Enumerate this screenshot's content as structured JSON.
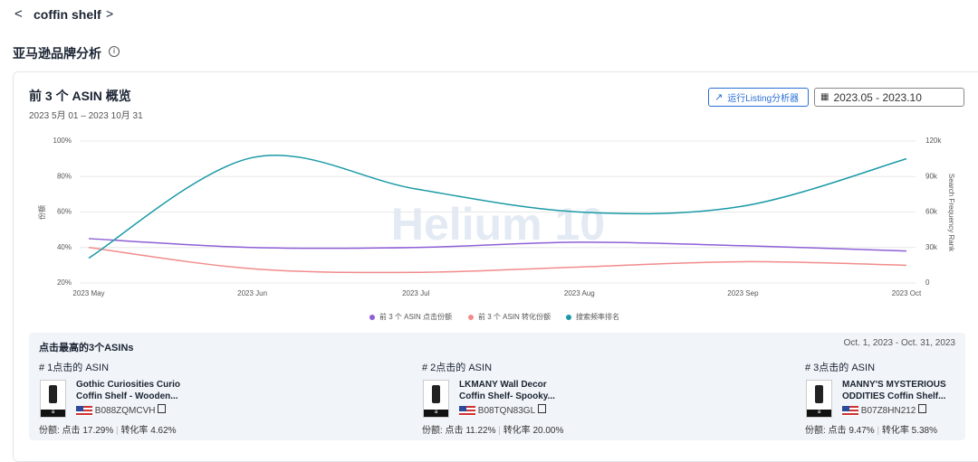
{
  "header": {
    "title": "coffin shelf"
  },
  "section": {
    "title": "亚马逊品牌分析"
  },
  "card": {
    "title": "前 3 个 ASIN 概览",
    "date_range": "2023 5月 01 – 2023 10月 31",
    "button": "运行Listing分析器",
    "date_picker": "2023.05 - 2023.10",
    "watermark": "Helium 10"
  },
  "chart_data": {
    "type": "line",
    "x": [
      "2023 May",
      "2023 Jun",
      "2023 Jul",
      "2023 Aug",
      "2023 Sep",
      "2023 Oct"
    ],
    "ylabel": "份额",
    "y2label": "Search Frequency Rank",
    "ylim": [
      20,
      100
    ],
    "yticks": [
      {
        "value": 20,
        "label": "20%"
      },
      {
        "value": 40,
        "label": "40%"
      },
      {
        "value": 60,
        "label": "60%"
      },
      {
        "value": 80,
        "label": "80%"
      },
      {
        "value": 100,
        "label": "100%"
      }
    ],
    "y2lim": [
      0,
      120000
    ],
    "y2ticks": [
      0,
      {
        "value": 30000,
        "label": "30k"
      },
      {
        "value": 60000,
        "label": "60k"
      },
      {
        "value": 90000,
        "label": "90k"
      },
      {
        "value": 120000,
        "label": "120k"
      }
    ],
    "grid": true,
    "series": [
      {
        "name": "前 3 个 ASIN 点击份额",
        "color": "#8e5fd6",
        "values": [
          45,
          40,
          40,
          43,
          41,
          38
        ]
      },
      {
        "name": "前 3 个 ASIN 转化份额",
        "color": "#f28b8b",
        "values": [
          40,
          28,
          26,
          29,
          32,
          30
        ]
      },
      {
        "name": "搜索频率排名",
        "color": "#1a9aa6",
        "axis": "y2",
        "values": [
          21000,
          106000,
          79500,
          60000,
          65000,
          105000
        ]
      }
    ]
  },
  "top_asins": {
    "title": "点击最高的3个ASINs",
    "date_range": "Oct. 1, 2023 - Oct. 31, 2023",
    "items": [
      {
        "rank": "# 1点击的 ASIN",
        "name": "Gothic Curiosities Curio Coffin Shelf - Wooden...",
        "asin": "B088ZQMCVH",
        "click": "份额: 点击 17.29%",
        "conversion": "转化率 4.62%"
      },
      {
        "rank": "# 2点击的 ASIN",
        "name": "LKMANY Wall Decor Coffin Shelf- Spooky...",
        "asin": "B08TQN83GL",
        "click": "份额: 点击 11.22%",
        "conversion": "转化率 20.00%"
      },
      {
        "rank": "# 3点击的 ASIN",
        "name": "MANNY'S MYSTERIOUS ODDITIES Coffin Shelf...",
        "asin": "B07Z8HN212",
        "click": "份额: 点击 9.47%",
        "conversion": "转化率 5.38%"
      }
    ]
  }
}
